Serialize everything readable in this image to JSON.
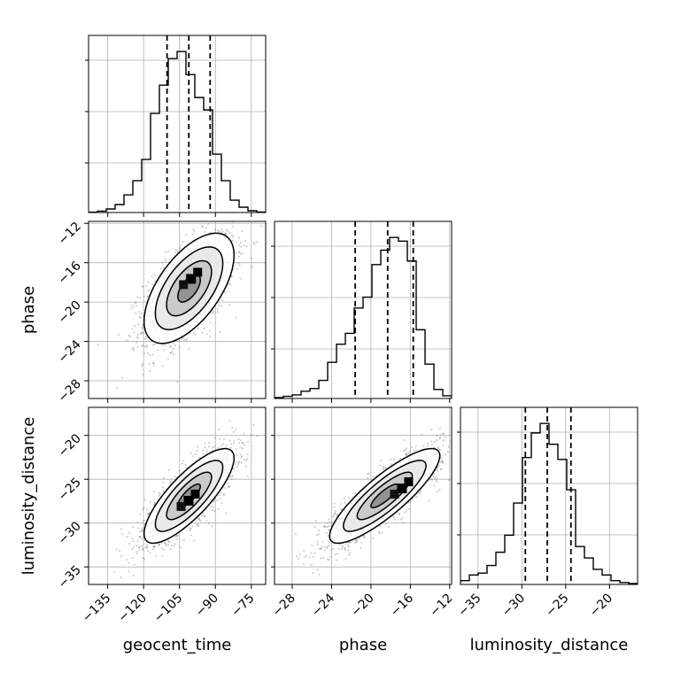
{
  "chart_data": {
    "type": "corner",
    "parameters": [
      "geocent_time",
      "phase",
      "luminosity_distance"
    ],
    "axes": {
      "geocent_time": {
        "label": "geocent_time",
        "range": [
          -143,
          -69
        ],
        "ticks": [
          -135,
          -120,
          -105,
          -90,
          -75
        ]
      },
      "phase": {
        "label": "phase",
        "range": [
          -29.8,
          -11.8
        ],
        "ticks": [
          -28,
          -24,
          -20,
          -16,
          -12
        ]
      },
      "luminosity_distance": {
        "label": "luminosity_distance",
        "range": [
          -37,
          -16.8
        ],
        "ticks": [
          -35,
          -30,
          -25,
          -20
        ]
      }
    },
    "grid": true,
    "marginals": [
      {
        "parameter": "geocent_time",
        "quantiles": [
          -110.2,
          -101.1,
          -92.2
        ],
        "bin_edges": [
          -143,
          -139.3,
          -135.6,
          -131.9,
          -128.2,
          -124.5,
          -120.8,
          -117.1,
          -113.4,
          -109.7,
          -106,
          -102.3,
          -98.6,
          -94.9,
          -91.2,
          -87.5,
          -83.8,
          -80.1,
          -76.4,
          -72.7,
          -69
        ],
        "counts": [
          0.002,
          0.008,
          0.02,
          0.045,
          0.1,
          0.18,
          0.3,
          0.56,
          0.72,
          0.87,
          0.91,
          0.78,
          0.65,
          0.58,
          0.33,
          0.18,
          0.07,
          0.03,
          0.01,
          0.003
        ]
      },
      {
        "parameter": "phase",
        "quantiles": [
          -21.6,
          -18.3,
          -15.7
        ],
        "bin_edges": [
          -29.8,
          -28.9,
          -28,
          -27.1,
          -26.2,
          -25.3,
          -24.4,
          -23.5,
          -22.6,
          -21.7,
          -20.8,
          -19.9,
          -19,
          -18.1,
          -17.2,
          -16.3,
          -15.4,
          -14.5,
          -13.6,
          -12.7,
          -11.8
        ],
        "counts": [
          0.005,
          0.012,
          0.02,
          0.04,
          0.055,
          0.1,
          0.2,
          0.3,
          0.36,
          0.5,
          0.56,
          0.74,
          0.82,
          0.89,
          0.87,
          0.76,
          0.38,
          0.19,
          0.05,
          0.015
        ]
      },
      {
        "parameter": "luminosity_distance",
        "quantiles": [
          -29.6,
          -27.1,
          -24.4
        ],
        "bin_edges": [
          -37,
          -35.99,
          -34.98,
          -33.97,
          -32.96,
          -31.95,
          -30.94,
          -29.93,
          -28.92,
          -27.91,
          -26.9,
          -25.89,
          -24.88,
          -23.87,
          -22.86,
          -21.85,
          -20.84,
          -19.83,
          -18.82,
          -17.81,
          -16.8
        ],
        "counts": [
          0.02,
          0.05,
          0.06,
          0.1,
          0.17,
          0.26,
          0.43,
          0.67,
          0.8,
          0.85,
          0.74,
          0.66,
          0.5,
          0.2,
          0.14,
          0.08,
          0.05,
          0.02,
          0.01,
          0.005
        ]
      }
    ],
    "joints": [
      {
        "x": "geocent_time",
        "y": "phase",
        "mean": [
          -101,
          -18.6
        ],
        "sd": [
          9.4,
          2.8
        ],
        "corr": 0.6,
        "peak": [
          -100,
          -17.6
        ]
      },
      {
        "x": "geocent_time",
        "y": "luminosity_distance",
        "mean": [
          -101,
          -26.9
        ],
        "sd": [
          9.4,
          2.7
        ],
        "corr": 0.8,
        "peak": [
          -101,
          -27.4
        ]
      },
      {
        "x": "phase",
        "y": "luminosity_distance",
        "mean": [
          -18.6,
          -26.9
        ],
        "sd": [
          2.8,
          2.7
        ],
        "corr": 0.85,
        "peak": [
          -16.8,
          -26
        ]
      }
    ],
    "contour_levels": [
      0.118,
      0.393,
      0.675,
      0.865
    ],
    "colors": {
      "ink": "#000000",
      "grid": "#b0b0b0",
      "points": "#555555"
    }
  }
}
